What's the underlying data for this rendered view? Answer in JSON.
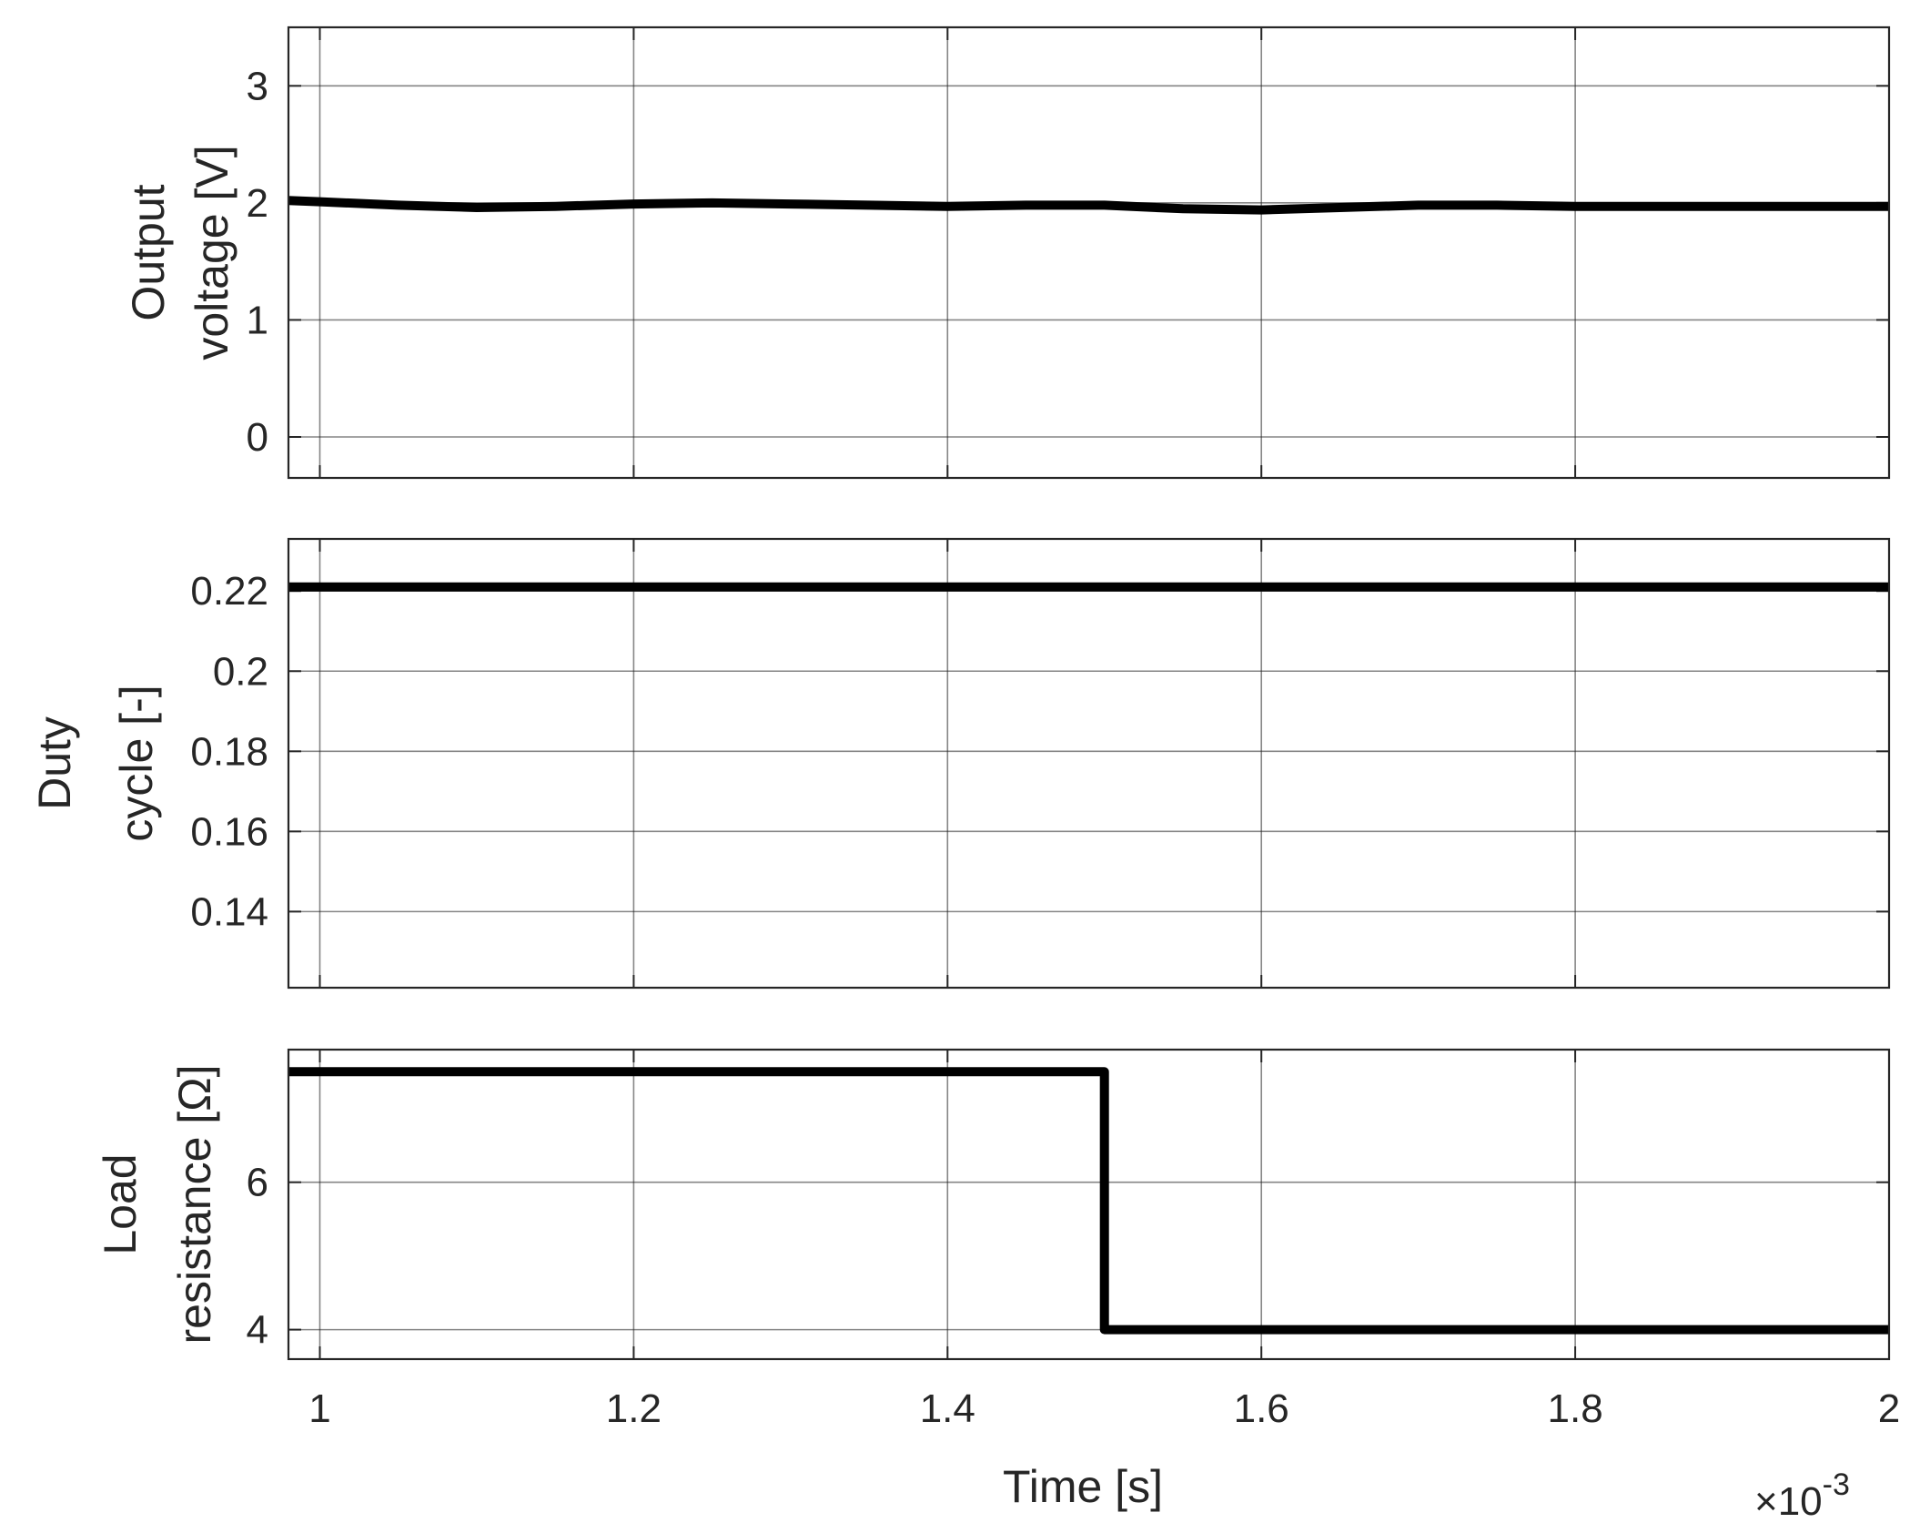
{
  "chart_data": [
    {
      "type": "line",
      "ylabel_lines": [
        "Output",
        "voltage [V]"
      ],
      "xlim": [
        0.98,
        2.0
      ],
      "ylim": [
        -0.35,
        3.5
      ],
      "yticks": [
        0,
        1,
        2,
        3
      ],
      "ytick_labels": [
        "0",
        "1",
        "2",
        "3"
      ],
      "xticks": [
        1,
        1.2,
        1.4,
        1.6,
        1.8,
        2
      ],
      "grid": true,
      "series": [
        {
          "color": "#000000",
          "x": [
            0.98,
            1.0,
            1.05,
            1.1,
            1.15,
            1.2,
            1.25,
            1.3,
            1.35,
            1.4,
            1.45,
            1.5,
            1.55,
            1.6,
            1.65,
            1.7,
            1.75,
            1.8,
            1.85,
            1.9,
            1.95,
            2.0
          ],
          "y": [
            2.02,
            2.01,
            1.98,
            1.96,
            1.97,
            1.99,
            2.0,
            1.99,
            1.98,
            1.97,
            1.98,
            1.98,
            1.95,
            1.94,
            1.96,
            1.98,
            1.98,
            1.97,
            1.97,
            1.97,
            1.97,
            1.97
          ]
        }
      ]
    },
    {
      "type": "line",
      "ylabel_lines": [
        "Duty",
        "cycle [-]"
      ],
      "xlim": [
        0.98,
        2.0
      ],
      "ylim": [
        0.121,
        0.233
      ],
      "yticks": [
        0.14,
        0.16,
        0.18,
        0.2,
        0.22
      ],
      "ytick_labels": [
        "0.14",
        "0.16",
        "0.18",
        "0.2",
        "0.22"
      ],
      "xticks": [
        1,
        1.2,
        1.4,
        1.6,
        1.8,
        2
      ],
      "grid": true,
      "series": [
        {
          "color": "#000000",
          "x": [
            0.98,
            2.0
          ],
          "y": [
            0.221,
            0.221
          ]
        }
      ]
    },
    {
      "type": "line",
      "ylabel_lines": [
        "Load",
        "resistance [Ω]"
      ],
      "xlim": [
        0.98,
        2.0
      ],
      "ylim": [
        3.6,
        7.8
      ],
      "yticks": [
        4,
        6
      ],
      "ytick_labels": [
        "4",
        "6"
      ],
      "xticks": [
        1,
        1.2,
        1.4,
        1.6,
        1.8,
        2
      ],
      "xtick_labels": [
        "1",
        "1.2",
        "1.4",
        "1.6",
        "1.8",
        "2"
      ],
      "xlabel": "Time [s]",
      "x_exponent": "×10",
      "x_exponent_power": "-3",
      "grid": true,
      "series": [
        {
          "color": "#000000",
          "x": [
            0.98,
            1.5,
            1.5,
            2.0
          ],
          "y": [
            7.5,
            7.5,
            4.0,
            4.0
          ]
        }
      ]
    }
  ]
}
